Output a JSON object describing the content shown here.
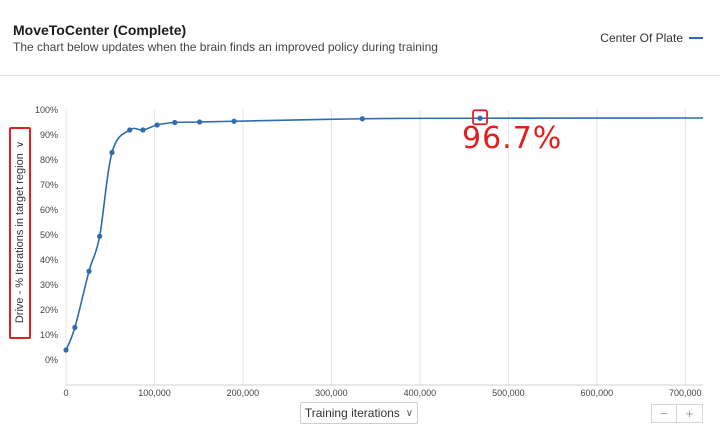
{
  "header": {
    "title": "MoveToCenter (Complete)",
    "subtitle": "The chart below updates when the brain finds an improved policy during training",
    "legend_label": "Center Of Plate"
  },
  "y_axis_selector": {
    "label": "Drive - % Iterations in target region"
  },
  "x_axis_selector": {
    "label": "Training iterations"
  },
  "zoom": {
    "minus": "−",
    "plus": "+"
  },
  "annotation": {
    "text": "96.7%"
  },
  "colors": {
    "line": "#2f6bb0",
    "highlight": "#e02020",
    "grid": "#e4e4e4"
  },
  "chart_data": {
    "type": "line",
    "xlim": [
      0,
      720000
    ],
    "ylim": [
      0,
      100
    ],
    "x_ticks": [
      0,
      100000,
      200000,
      300000,
      400000,
      500000,
      600000,
      700000
    ],
    "x_tick_labels": [
      "0",
      "100,000",
      "200,000",
      "300,000",
      "400,000",
      "500,000",
      "600,000",
      "700,000"
    ],
    "y_ticks": [
      0,
      10,
      20,
      30,
      40,
      50,
      60,
      70,
      80,
      90,
      100
    ],
    "y_tick_labels": [
      "0%",
      "10%",
      "20%",
      "30%",
      "40%",
      "50%",
      "60%",
      "70%",
      "80%",
      "90%",
      "100%"
    ],
    "grid": "vertical",
    "legend": "top-right",
    "series": [
      {
        "name": "Center Of Plate",
        "x": [
          0,
          10000,
          26000,
          38000,
          52000,
          72000,
          87000,
          103000,
          123000,
          151000,
          190000,
          335000,
          468000,
          720000
        ],
        "y": [
          4,
          13,
          35.5,
          49.5,
          83,
          92,
          92,
          94,
          95,
          95.2,
          95.5,
          96.5,
          96.7,
          96.8
        ],
        "markers": [
          true,
          true,
          true,
          true,
          true,
          true,
          true,
          true,
          true,
          true,
          true,
          true,
          true,
          false
        ]
      }
    ],
    "highlight": {
      "x": 468000,
      "y": 96.7
    }
  }
}
